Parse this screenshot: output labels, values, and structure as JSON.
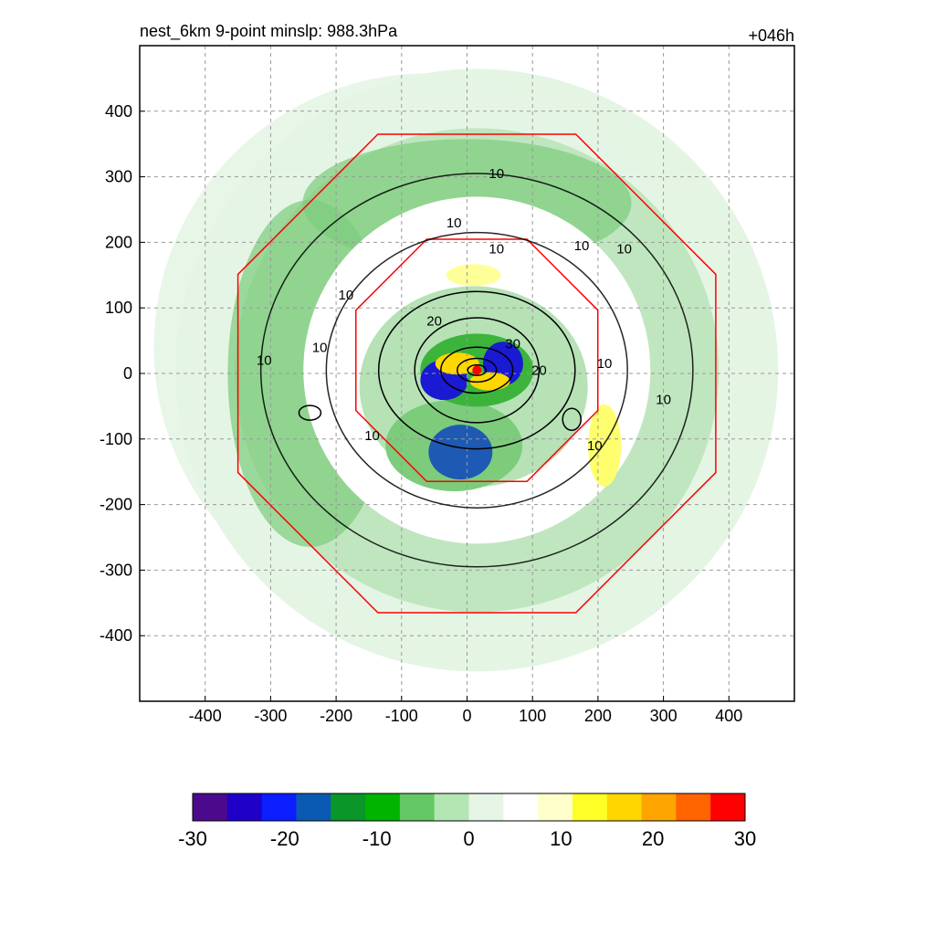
{
  "chart_data": {
    "type": "heatmap",
    "title_left": "nest_6km  9-point minslp: 988.3hPa",
    "title_right": "+046h",
    "xlabel": "",
    "ylabel": "",
    "xlim": [
      -500,
      500
    ],
    "ylim": [
      -500,
      500
    ],
    "x_ticks": [
      -400,
      -300,
      -200,
      -100,
      0,
      100,
      200,
      300,
      400
    ],
    "y_ticks": [
      400,
      300,
      200,
      100,
      0,
      -100,
      -200,
      -300,
      -400
    ],
    "grid": "dashed",
    "colorbar": {
      "range": [
        -30,
        30
      ],
      "ticks": [
        -30,
        -20,
        -10,
        0,
        10,
        20,
        30
      ],
      "colors": [
        "#4b0a8c",
        "#1e00c8",
        "#0a1eff",
        "#0a5ab4",
        "#0a9628",
        "#00b400",
        "#64c864",
        "#b4e6b4",
        "#e6f5e6",
        "#ffffff",
        "#ffffcc",
        "#ffff28",
        "#ffd700",
        "#ffa500",
        "#ff6400",
        "#ff0000"
      ]
    },
    "contour_labels": [
      {
        "text": "10",
        "x": 45,
        "y": 305
      },
      {
        "text": "10",
        "x": -20,
        "y": 230
      },
      {
        "text": "10",
        "x": 45,
        "y": 190
      },
      {
        "text": "10",
        "x": 175,
        "y": 195
      },
      {
        "text": "10",
        "x": 240,
        "y": 190
      },
      {
        "text": "10",
        "x": -185,
        "y": 120
      },
      {
        "text": "10",
        "x": -225,
        "y": 40
      },
      {
        "text": "10",
        "x": -310,
        "y": 20
      },
      {
        "text": "20",
        "x": -50,
        "y": 80
      },
      {
        "text": "30",
        "x": 70,
        "y": 45
      },
      {
        "text": "20",
        "x": 110,
        "y": 5
      },
      {
        "text": "10",
        "x": 210,
        "y": 15
      },
      {
        "text": "10",
        "x": 300,
        "y": -40
      },
      {
        "text": "10",
        "x": -145,
        "y": -95
      },
      {
        "text": "10",
        "x": 195,
        "y": -110
      }
    ],
    "storm_center": {
      "x": 15,
      "y": 5
    }
  }
}
